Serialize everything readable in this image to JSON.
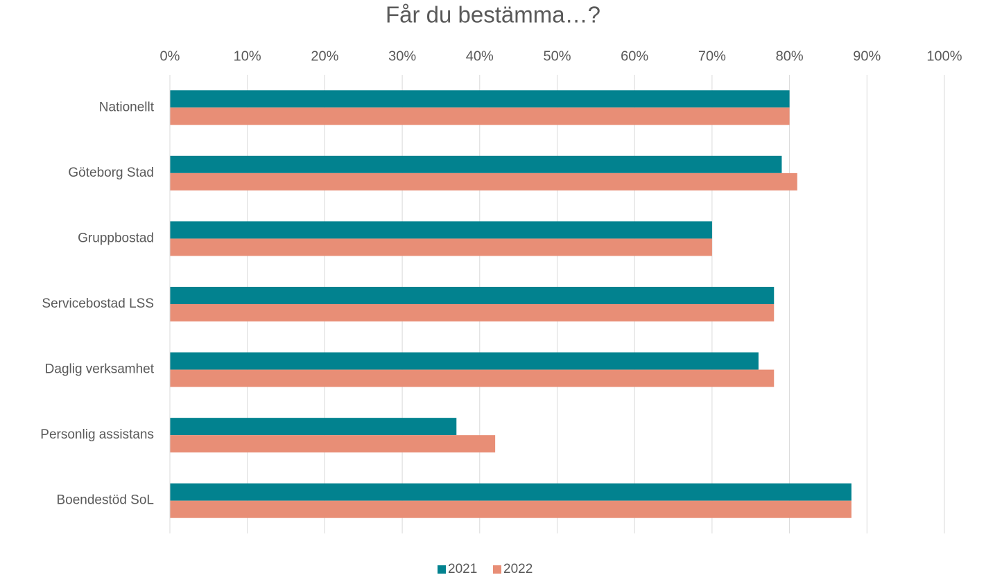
{
  "chart_data": {
    "type": "hbar",
    "title": "Får du bestämma…?",
    "categories": [
      "Nationellt",
      "Göteborg Stad",
      "Gruppbostad",
      "Servicebostad LSS",
      "Daglig verksamhet",
      "Personlig assistans",
      "Boendestöd SoL"
    ],
    "series": [
      {
        "name": "2021",
        "color": "#02828f",
        "values": [
          80,
          79,
          70,
          78,
          76,
          37,
          88
        ]
      },
      {
        "name": "2022",
        "color": "#e88e76",
        "values": [
          80,
          81,
          70,
          78,
          78,
          42,
          88
        ]
      }
    ],
    "xlim": [
      0,
      100
    ],
    "xticks": [
      {
        "value": 0,
        "label": "0%"
      },
      {
        "value": 10,
        "label": "10%"
      },
      {
        "value": 20,
        "label": "20%"
      },
      {
        "value": 30,
        "label": "30%"
      },
      {
        "value": 40,
        "label": "40%"
      },
      {
        "value": 50,
        "label": "50%"
      },
      {
        "value": 60,
        "label": "60%"
      },
      {
        "value": 70,
        "label": "70%"
      },
      {
        "value": 80,
        "label": "80%"
      },
      {
        "value": 90,
        "label": "90%"
      },
      {
        "value": 100,
        "label": "100%"
      }
    ],
    "grid": true,
    "legend": "bottom"
  }
}
